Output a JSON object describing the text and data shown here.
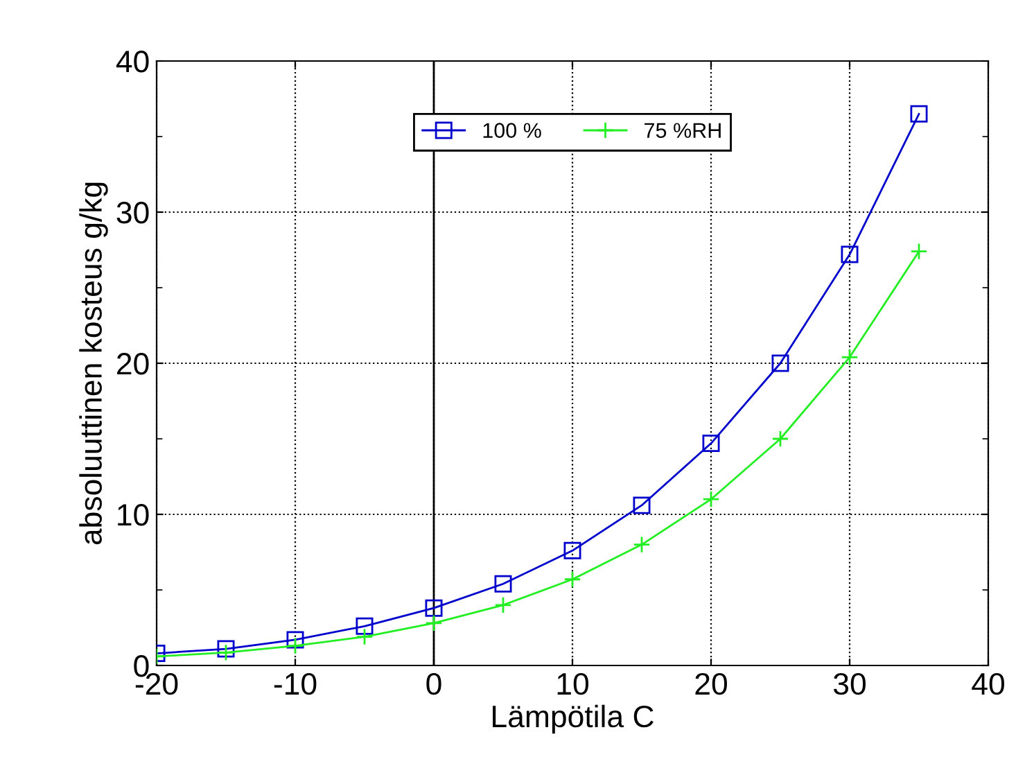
{
  "chart_data": {
    "type": "line",
    "xlabel": "Lämpötila C",
    "ylabel": "absoluuttinen kosteus g/kg",
    "x": [
      -20,
      -15,
      -10,
      -5,
      0,
      5,
      10,
      15,
      20,
      25,
      30,
      35
    ],
    "series": [
      {
        "name": "100 %",
        "color": "#0000cc",
        "marker": "square",
        "values": [
          0.8,
          1.1,
          1.7,
          2.6,
          3.8,
          5.4,
          7.6,
          10.6,
          14.7,
          20.0,
          27.2,
          36.5
        ]
      },
      {
        "name": "75 %RH",
        "color": "#22ee22",
        "marker": "cross",
        "values": [
          0.6,
          0.85,
          1.3,
          1.9,
          2.8,
          4.0,
          5.7,
          8.0,
          11.0,
          15.0,
          20.4,
          27.4
        ]
      }
    ],
    "xlim": [
      -20,
      40
    ],
    "xticks": [
      -20,
      -10,
      0,
      10,
      20,
      30,
      40
    ],
    "ylim": [
      0,
      40
    ],
    "yticks": [
      0,
      {
        "value": 5,
        "label": null
      },
      10,
      {
        "value": 15,
        "label": null
      },
      20,
      {
        "value": 25,
        "label": null
      },
      30,
      {
        "value": 35,
        "label": null
      },
      40
    ],
    "ref_lines": [
      {
        "axis": "x",
        "value": 0,
        "color": "#000000",
        "line_style": "solid"
      }
    ],
    "grid": true,
    "legend": "top",
    "line_style": "solid"
  }
}
